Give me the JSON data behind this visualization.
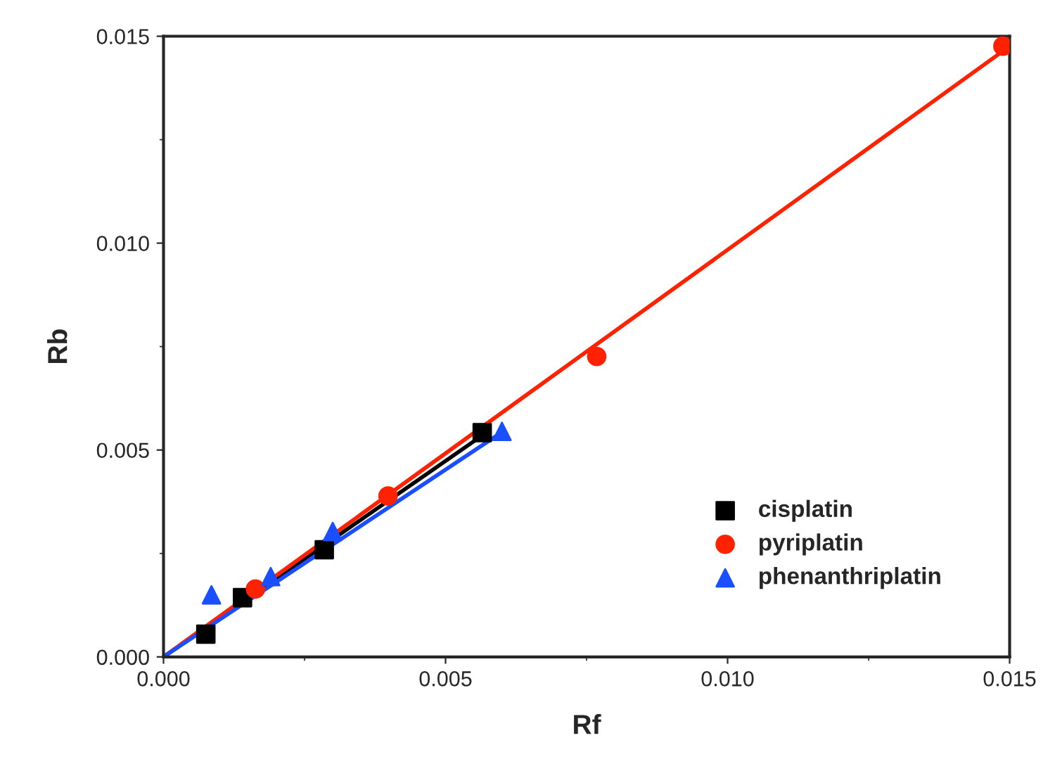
{
  "chart_data": {
    "type": "scatter",
    "xlabel": "Rf",
    "ylabel": "Rb",
    "xlim": [
      0,
      0.015
    ],
    "ylim": [
      0,
      0.015
    ],
    "xticks": [
      {
        "value": 0,
        "label": "0.000"
      },
      {
        "value": 0.005,
        "label": "0.005"
      },
      {
        "value": 0.01,
        "label": "0.010"
      },
      {
        "value": 0.015,
        "label": "0.015"
      }
    ],
    "yticks": [
      {
        "value": 0,
        "label": "0.000"
      },
      {
        "value": 0.005,
        "label": "0.005"
      },
      {
        "value": 0.01,
        "label": "0.010"
      },
      {
        "value": 0.015,
        "label": "0.015"
      }
    ],
    "legend": "bottom right",
    "grid": false,
    "series": [
      {
        "type": "line",
        "color": "#000000",
        "x": [
          0,
          0.0057
        ],
        "values": [
          0,
          0.0054
        ],
        "marker": "none"
      },
      {
        "type": "line",
        "color": "#ff2200",
        "x": [
          0,
          0.0149
        ],
        "values": [
          0,
          0.01466
        ],
        "marker": "none"
      },
      {
        "type": "line",
        "color": "#1a4fff",
        "x": [
          0,
          0.006
        ],
        "values": [
          0,
          0.00543
        ],
        "marker": "none"
      },
      {
        "name": "cisplatin",
        "color": "#000000",
        "marker": "square",
        "x": [
          0.00075,
          0.0014,
          0.00285,
          0.00565
        ],
        "values": [
          0.00055,
          0.00143,
          0.00259,
          0.00542
        ]
      },
      {
        "name": "pyriplatin",
        "color": "#ff2200",
        "marker": "circle",
        "x": [
          0.00163,
          0.00398,
          0.00768,
          0.01488
        ],
        "values": [
          0.00164,
          0.00389,
          0.00726,
          0.01476
        ]
      },
      {
        "name": "phenanthriplatin",
        "color": "#1a4fff",
        "marker": "triangle",
        "x": [
          0.00085,
          0.0019,
          0.003,
          0.006
        ],
        "values": [
          0.0015,
          0.00194,
          0.00303,
          0.00545
        ]
      }
    ]
  }
}
